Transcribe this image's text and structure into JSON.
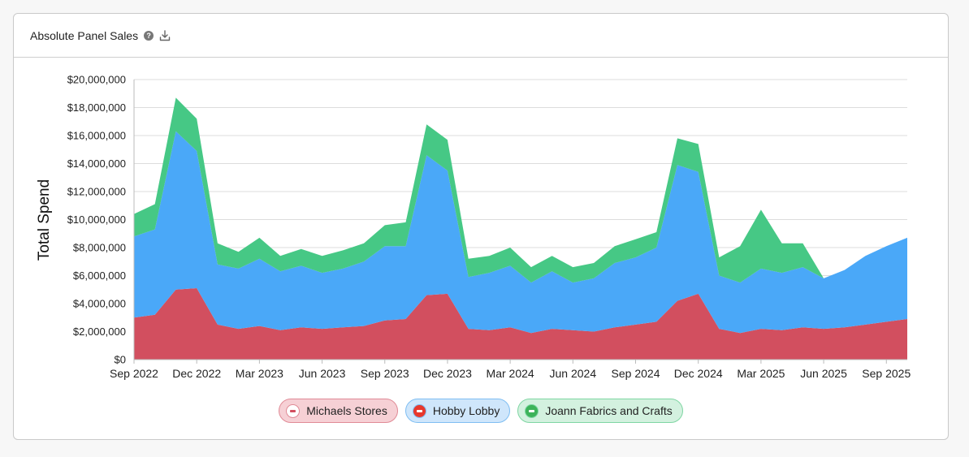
{
  "header": {
    "title": "Absolute Panel Sales",
    "help_icon": "?",
    "download_icon": "download-icon"
  },
  "chart_data": {
    "type": "area",
    "stacked": true,
    "title": "Absolute Panel Sales",
    "xlabel": "",
    "ylabel": "Total Spend",
    "ylim": [
      0,
      20000000
    ],
    "yticks": [
      0,
      2000000,
      4000000,
      6000000,
      8000000,
      10000000,
      12000000,
      14000000,
      16000000,
      18000000,
      20000000
    ],
    "ytick_labels": [
      "$0",
      "$2,000,000",
      "$4,000,000",
      "$6,000,000",
      "$8,000,000",
      "$10,000,000",
      "$12,000,000",
      "$14,000,000",
      "$16,000,000",
      "$18,000,000",
      "$20,000,000"
    ],
    "x": [
      "Sep 2022",
      "Oct 2022",
      "Nov 2022",
      "Dec 2022",
      "Jan 2023",
      "Feb 2023",
      "Mar 2023",
      "Apr 2023",
      "May 2023",
      "Jun 2023",
      "Jul 2023",
      "Aug 2023",
      "Sep 2023",
      "Oct 2023",
      "Nov 2023",
      "Dec 2023",
      "Jan 2024",
      "Feb 2024",
      "Mar 2024",
      "Apr 2024",
      "May 2024",
      "Jun 2024",
      "Jul 2024",
      "Aug 2024",
      "Sep 2024",
      "Oct 2024",
      "Nov 2024",
      "Dec 2024",
      "Jan 2025",
      "Feb 2025",
      "Mar 2025",
      "Apr 2025",
      "May 2025",
      "Jun 2025",
      "Jul 2025",
      "Aug 2025",
      "Sep 2025",
      "Oct 2025"
    ],
    "xtick_labels": [
      {
        "index": 0,
        "label": "Sep 2022"
      },
      {
        "index": 3,
        "label": "Dec 2022"
      },
      {
        "index": 6,
        "label": "Mar 2023"
      },
      {
        "index": 9,
        "label": "Jun 2023"
      },
      {
        "index": 12,
        "label": "Sep 2023"
      },
      {
        "index": 15,
        "label": "Dec 2023"
      },
      {
        "index": 18,
        "label": "Mar 2024"
      },
      {
        "index": 21,
        "label": "Jun 2024"
      },
      {
        "index": 24,
        "label": "Sep 2024"
      },
      {
        "index": 27,
        "label": "Dec 2024"
      },
      {
        "index": 30,
        "label": "Mar 2025"
      },
      {
        "index": 33,
        "label": "Jun 2025"
      },
      {
        "index": 36,
        "label": "Sep 2025"
      }
    ],
    "series": [
      {
        "name": "Michaels Stores",
        "color": "#d24f5f",
        "legend_bg": "#f6d0d5",
        "legend_border": "#e08a96",
        "logo_bg": "#ffffff",
        "logo_fg": "#d24f5f",
        "values": [
          3000000,
          3200000,
          5000000,
          5100000,
          2500000,
          2200000,
          2400000,
          2100000,
          2300000,
          2200000,
          2300000,
          2400000,
          2800000,
          2900000,
          4600000,
          4700000,
          2200000,
          2100000,
          2300000,
          1900000,
          2200000,
          2100000,
          2000000,
          2300000,
          2500000,
          2700000,
          4200000,
          4700000,
          2200000,
          1900000,
          2200000,
          2100000,
          2300000,
          2200000,
          2300000,
          2500000,
          2700000,
          2900000
        ]
      },
      {
        "name": "Hobby Lobby",
        "color": "#4aa8f8",
        "legend_bg": "#cfe6fb",
        "legend_border": "#7fbef2",
        "logo_bg": "#e8382c",
        "logo_fg": "#ffffff",
        "values": [
          5800000,
          6100000,
          11300000,
          9800000,
          4300000,
          4300000,
          4800000,
          4200000,
          4400000,
          4000000,
          4200000,
          4600000,
          5300000,
          5200000,
          10000000,
          8800000,
          3700000,
          4100000,
          4400000,
          3600000,
          4100000,
          3400000,
          3800000,
          4600000,
          4800000,
          5300000,
          9700000,
          8700000,
          3800000,
          3600000,
          4300000,
          4100000,
          4300000,
          3600000,
          4100000,
          4900000,
          5400000,
          5800000
        ]
      },
      {
        "name": "Joann Fabrics and Crafts",
        "color": "#46c885",
        "legend_bg": "#d3f1df",
        "legend_border": "#7fd6a3",
        "logo_bg": "#3db35a",
        "logo_fg": "#ffffff",
        "values": [
          1600000,
          1800000,
          2400000,
          2300000,
          1500000,
          1200000,
          1500000,
          1100000,
          1200000,
          1200000,
          1300000,
          1300000,
          1500000,
          1700000,
          2200000,
          2200000,
          1300000,
          1200000,
          1300000,
          1100000,
          1100000,
          1100000,
          1100000,
          1200000,
          1300000,
          1100000,
          1900000,
          2000000,
          1300000,
          2600000,
          4200000,
          2100000,
          1700000,
          0,
          0,
          0,
          0,
          0
        ]
      }
    ]
  }
}
